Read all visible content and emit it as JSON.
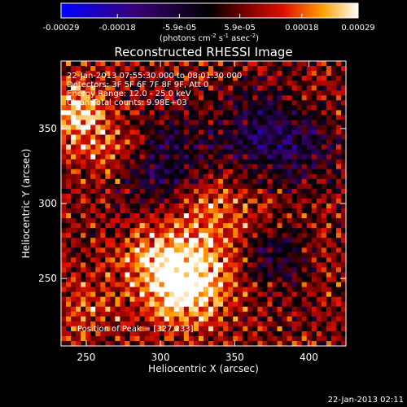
{
  "chart_data": {
    "type": "heatmap",
    "title": "Reconstructed RHESSI Image",
    "xlabel": "Heliocentric X (arcsec)",
    "ylabel": "Heliocentric Y (arcsec)",
    "x_ticks": [
      250,
      300,
      350,
      400
    ],
    "y_ticks": [
      250,
      300,
      350
    ],
    "xlim": [
      233,
      425
    ],
    "ylim": [
      205,
      395
    ],
    "colorbar": {
      "min": -0.00029,
      "max": 0.00029,
      "tick_values": [
        -0.00029,
        -0.00018,
        -5.9e-05,
        5.9e-05,
        0.00018,
        0.00029
      ],
      "tick_labels": [
        "-0.00029",
        "-0.00018",
        "-5.9e-05",
        "5.9e-05",
        "0.00018",
        "0.00029"
      ],
      "units_main": "(photons cm",
      "units_sup1": "-2",
      "units_mid": " s",
      "units_sup2": "-1",
      "units_end": " asec",
      "units_sup3": "-2",
      "units_close": ")"
    },
    "info_lines": [
      "22-Jan-2013 07:55:30.000 to 08:01:30.000",
      "Detectors: 3F 5F 6F 7F 8F 9F, Att 0",
      "Energy Range: 12.0 - 25.0 keV",
      "Clean    Total counts: 9.98E+03"
    ],
    "peak_label": "Position of Peak = [327,233]",
    "peak": [
      327,
      233
    ],
    "sources": [
      {
        "x": 320,
        "y": 245,
        "intensity": 1.0,
        "sigma": 18
      },
      {
        "x": 300,
        "y": 260,
        "intensity": 0.7,
        "sigma": 20
      },
      {
        "x": 245,
        "y": 360,
        "intensity": 0.85,
        "sigma": 14
      },
      {
        "x": 270,
        "y": 335,
        "intensity": 0.55,
        "sigma": 16
      },
      {
        "x": 335,
        "y": 295,
        "intensity": 0.5,
        "sigma": 22
      },
      {
        "x": 250,
        "y": 230,
        "intensity": 0.35,
        "sigma": 14
      }
    ],
    "dark_regions": [
      {
        "x": 300,
        "y": 325,
        "strength": 0.9,
        "sigma": 22
      },
      {
        "x": 365,
        "y": 345,
        "strength": 0.8,
        "sigma": 22
      },
      {
        "x": 375,
        "y": 265,
        "strength": 0.7,
        "sigma": 14
      },
      {
        "x": 400,
        "y": 335,
        "strength": 0.5,
        "sigma": 16
      }
    ]
  },
  "footer_timestamp": "22-Jan-2013 02:11"
}
